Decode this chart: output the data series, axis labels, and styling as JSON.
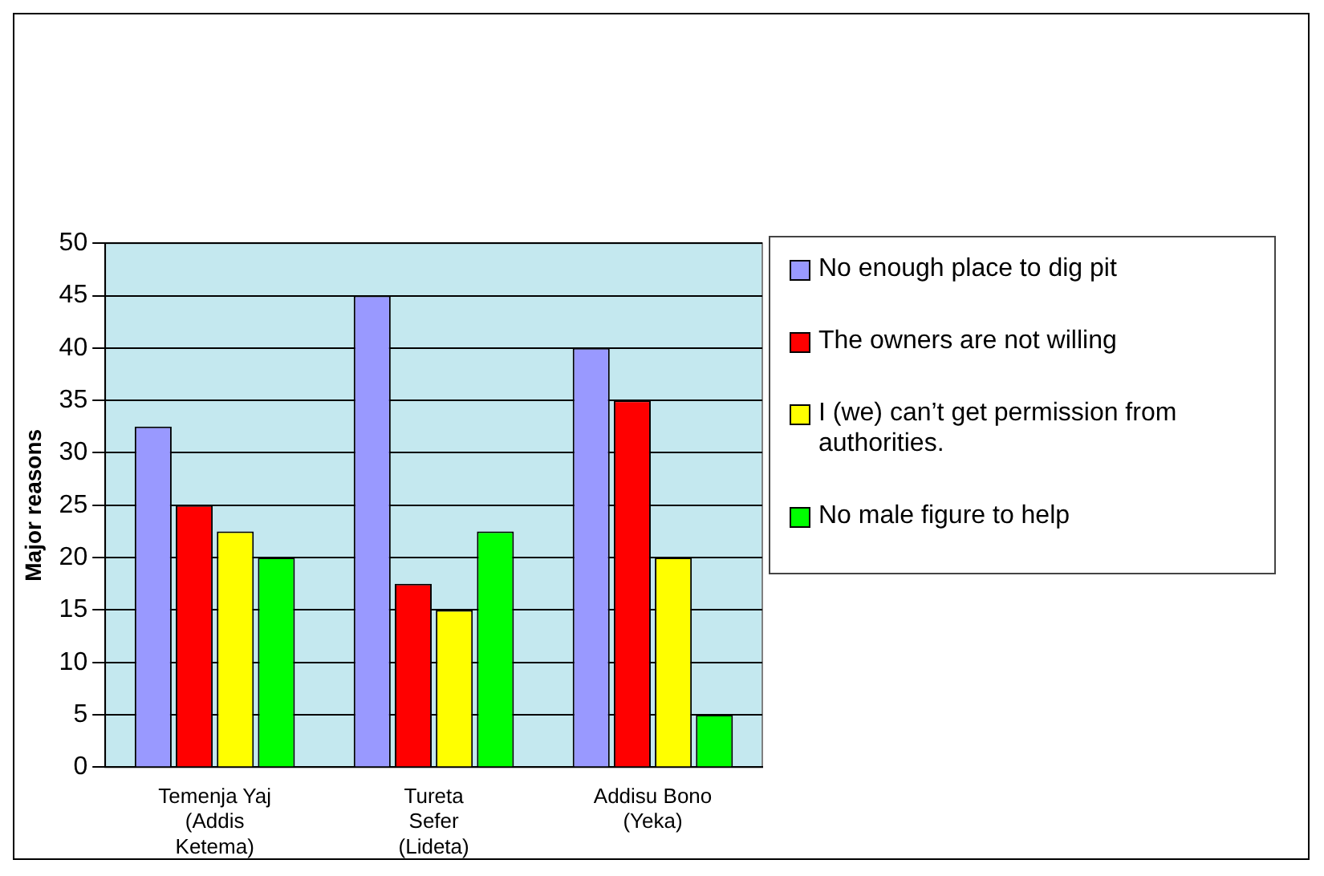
{
  "chart_data": {
    "type": "bar",
    "ylabel": "Major reasons",
    "categories": [
      "Temenja Yaj (Addis Ketema)",
      "Tureta Sefer (Lideta)",
      "Addisu Bono (Yeka)"
    ],
    "series": [
      {
        "name": "No enough place to dig pit",
        "color": "#9999ff",
        "values": [
          32.5,
          45,
          40
        ]
      },
      {
        "name": "The owners are not willing",
        "color": "#ff0000",
        "values": [
          25,
          17.5,
          35
        ]
      },
      {
        "name": "I (we) can’t get permission from authorities.",
        "color": "#ffff00",
        "values": [
          22.5,
          15,
          20
        ]
      },
      {
        "name": "No male figure to help",
        "color": "#00ff00",
        "values": [
          20,
          22.5,
          5
        ]
      }
    ],
    "ylim": [
      0,
      50
    ],
    "yticks": [
      0,
      5,
      10,
      15,
      20,
      25,
      30,
      35,
      40,
      45,
      50
    ],
    "grid": "y",
    "legend": "right"
  }
}
